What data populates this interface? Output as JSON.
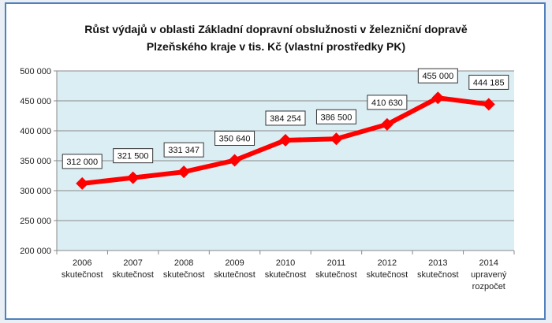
{
  "chart_data": {
    "type": "line",
    "title": "Růst  výdajů  v oblasti  Základní  dopravní  obslužnosti  v železniční dopravě",
    "subtitle": "Plzeňského kraje v tis. Kč (vlastní  prostředky PK)",
    "categories": [
      [
        "2006",
        "skutečnost"
      ],
      [
        "2007",
        "skutečnost"
      ],
      [
        "2008",
        "skutečnost"
      ],
      [
        "2009",
        "skutečnost"
      ],
      [
        "2010",
        "skutečnost"
      ],
      [
        "2011",
        "skutečnost"
      ],
      [
        "2012",
        "skutečnost"
      ],
      [
        "2013",
        "skutečnost"
      ],
      [
        "2014",
        "upravený",
        "rozpočet"
      ]
    ],
    "values": [
      312000,
      321500,
      331347,
      350640,
      384254,
      386500,
      410630,
      455000,
      444185
    ],
    "data_labels": [
      "312 000",
      "321 500",
      "331 347",
      "350 640",
      "384 254",
      "386 500",
      "410 630",
      "455 000",
      "444 185"
    ],
    "yticks": [
      "200 000",
      "250 000",
      "300 000",
      "350 000",
      "400 000",
      "450 000",
      "500 000"
    ],
    "ylim": [
      200000,
      500000
    ],
    "grid": true,
    "colors": {
      "line": "#ff0000",
      "plot_bg": "#dbeef4",
      "frame": "#4f81bd",
      "grid": "#8a8a8a"
    }
  }
}
